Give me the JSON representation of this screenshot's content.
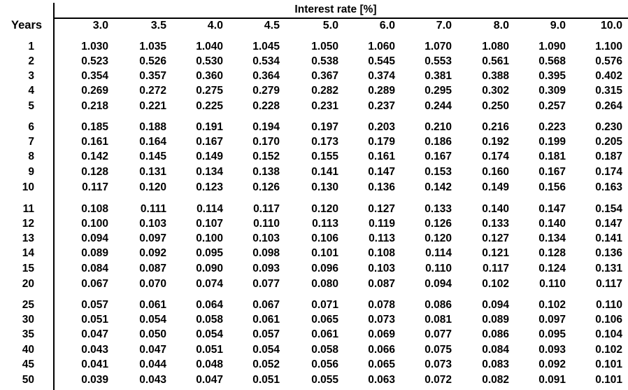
{
  "table": {
    "title": "Interest rate [%]",
    "row_header": "Years",
    "columns": [
      "3.0",
      "3.5",
      "4.0",
      "4.5",
      "5.0",
      "6.0",
      "7.0",
      "8.0",
      "9.0",
      "10.0"
    ],
    "rows": [
      {
        "year": "1",
        "values": [
          "1.030",
          "1.035",
          "1.040",
          "1.045",
          "1.050",
          "1.060",
          "1.070",
          "1.080",
          "1.090",
          "1.100"
        ]
      },
      {
        "year": "2",
        "values": [
          "0.523",
          "0.526",
          "0.530",
          "0.534",
          "0.538",
          "0.545",
          "0.553",
          "0.561",
          "0.568",
          "0.576"
        ]
      },
      {
        "year": "3",
        "values": [
          "0.354",
          "0.357",
          "0.360",
          "0.364",
          "0.367",
          "0.374",
          "0.381",
          "0.388",
          "0.395",
          "0.402"
        ]
      },
      {
        "year": "4",
        "values": [
          "0.269",
          "0.272",
          "0.275",
          "0.279",
          "0.282",
          "0.289",
          "0.295",
          "0.302",
          "0.309",
          "0.315"
        ]
      },
      {
        "year": "5",
        "values": [
          "0.218",
          "0.221",
          "0.225",
          "0.228",
          "0.231",
          "0.237",
          "0.244",
          "0.250",
          "0.257",
          "0.264"
        ]
      },
      {
        "year": "6",
        "values": [
          "0.185",
          "0.188",
          "0.191",
          "0.194",
          "0.197",
          "0.203",
          "0.210",
          "0.216",
          "0.223",
          "0.230"
        ]
      },
      {
        "year": "7",
        "values": [
          "0.161",
          "0.164",
          "0.167",
          "0.170",
          "0.173",
          "0.179",
          "0.186",
          "0.192",
          "0.199",
          "0.205"
        ]
      },
      {
        "year": "8",
        "values": [
          "0.142",
          "0.145",
          "0.149",
          "0.152",
          "0.155",
          "0.161",
          "0.167",
          "0.174",
          "0.181",
          "0.187"
        ]
      },
      {
        "year": "9",
        "values": [
          "0.128",
          "0.131",
          "0.134",
          "0.138",
          "0.141",
          "0.147",
          "0.153",
          "0.160",
          "0.167",
          "0.174"
        ]
      },
      {
        "year": "10",
        "values": [
          "0.117",
          "0.120",
          "0.123",
          "0.126",
          "0.130",
          "0.136",
          "0.142",
          "0.149",
          "0.156",
          "0.163"
        ]
      },
      {
        "year": "11",
        "values": [
          "0.108",
          "0.111",
          "0.114",
          "0.117",
          "0.120",
          "0.127",
          "0.133",
          "0.140",
          "0.147",
          "0.154"
        ]
      },
      {
        "year": "12",
        "values": [
          "0.100",
          "0.103",
          "0.107",
          "0.110",
          "0.113",
          "0.119",
          "0.126",
          "0.133",
          "0.140",
          "0.147"
        ]
      },
      {
        "year": "13",
        "values": [
          "0.094",
          "0.097",
          "0.100",
          "0.103",
          "0.106",
          "0.113",
          "0.120",
          "0.127",
          "0.134",
          "0.141"
        ]
      },
      {
        "year": "14",
        "values": [
          "0.089",
          "0.092",
          "0.095",
          "0.098",
          "0.101",
          "0.108",
          "0.114",
          "0.121",
          "0.128",
          "0.136"
        ]
      },
      {
        "year": "15",
        "values": [
          "0.084",
          "0.087",
          "0.090",
          "0.093",
          "0.096",
          "0.103",
          "0.110",
          "0.117",
          "0.124",
          "0.131"
        ]
      },
      {
        "year": "20",
        "values": [
          "0.067",
          "0.070",
          "0.074",
          "0.077",
          "0.080",
          "0.087",
          "0.094",
          "0.102",
          "0.110",
          "0.117"
        ]
      },
      {
        "year": "25",
        "values": [
          "0.057",
          "0.061",
          "0.064",
          "0.067",
          "0.071",
          "0.078",
          "0.086",
          "0.094",
          "0.102",
          "0.110"
        ]
      },
      {
        "year": "30",
        "values": [
          "0.051",
          "0.054",
          "0.058",
          "0.061",
          "0.065",
          "0.073",
          "0.081",
          "0.089",
          "0.097",
          "0.106"
        ]
      },
      {
        "year": "35",
        "values": [
          "0.047",
          "0.050",
          "0.054",
          "0.057",
          "0.061",
          "0.069",
          "0.077",
          "0.086",
          "0.095",
          "0.104"
        ]
      },
      {
        "year": "40",
        "values": [
          "0.043",
          "0.047",
          "0.051",
          "0.054",
          "0.058",
          "0.066",
          "0.075",
          "0.084",
          "0.093",
          "0.102"
        ]
      },
      {
        "year": "45",
        "values": [
          "0.041",
          "0.044",
          "0.048",
          "0.052",
          "0.056",
          "0.065",
          "0.073",
          "0.083",
          "0.092",
          "0.101"
        ]
      },
      {
        "year": "50",
        "values": [
          "0.039",
          "0.043",
          "0.047",
          "0.051",
          "0.055",
          "0.063",
          "0.072",
          "0.082",
          "0.091",
          "0.101"
        ]
      }
    ]
  }
}
